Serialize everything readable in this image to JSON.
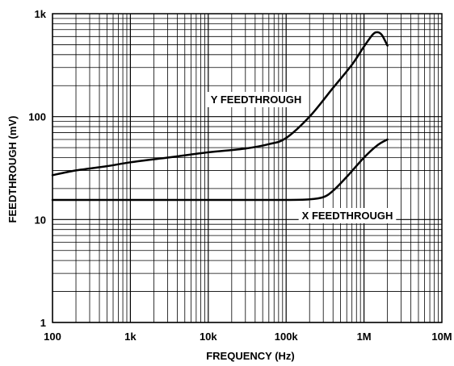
{
  "chart_data": {
    "type": "line",
    "title": "",
    "xlabel": "FREQUENCY (Hz)",
    "ylabel": "FEEDTHROUGH (mV)",
    "xscale": "log",
    "yscale": "log",
    "xlim": [
      100,
      10000000
    ],
    "ylim": [
      1,
      1000
    ],
    "grid": true,
    "legend": "none",
    "x_tick_labels": [
      "100",
      "1k",
      "10k",
      "100k",
      "1M",
      "10M"
    ],
    "y_tick_labels": [
      "1",
      "10",
      "100",
      "1k"
    ],
    "series": [
      {
        "label": "Y FEEDTHROUGH",
        "color": "#000000",
        "x": [
          100,
          200,
          500,
          1000,
          3000,
          10000,
          30000,
          60000,
          100000,
          200000,
          400000,
          700000,
          1000000,
          1300000,
          1500000,
          1700000,
          2000000
        ],
        "y": [
          27,
          30,
          33,
          36,
          40,
          45,
          49,
          54,
          62,
          100,
          190,
          320,
          480,
          630,
          660,
          620,
          490
        ]
      },
      {
        "label": "X FEEDTHROUGH",
        "color": "#000000",
        "x": [
          100,
          1000,
          10000,
          100000,
          200000,
          300000,
          400000,
          600000,
          1000000,
          1500000,
          2000000
        ],
        "y": [
          15.5,
          15.5,
          15.5,
          15.5,
          15.7,
          16.5,
          19,
          26,
          40,
          53,
          60
        ]
      }
    ]
  }
}
